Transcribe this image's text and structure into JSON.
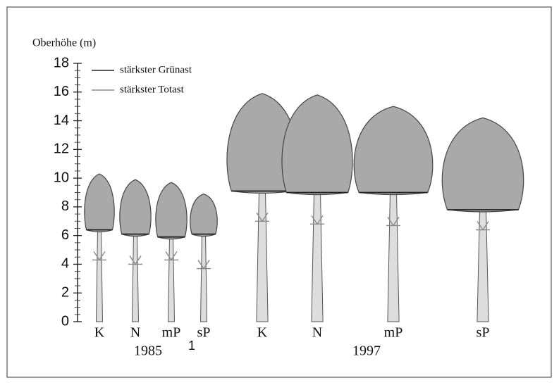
{
  "chart_data": {
    "type": "tree",
    "y_label": "Oberhöhe (m)",
    "categories": [
      "K",
      "N",
      "mP",
      "sP",
      "K",
      "N",
      "mP",
      "sP"
    ],
    "groups": [
      "1985",
      "1997"
    ],
    "annotation": "1",
    "values": [
      10.3,
      9.9,
      9.7,
      8.9,
      15.9,
      15.8,
      15.0,
      14.2
    ],
    "color": "#a9a9a9",
    "series": [
      {
        "name": "stärkster Grünast",
        "color": "#222222",
        "values": [
          6.4,
          6.1,
          5.9,
          6.1,
          9.1,
          9.0,
          9.0,
          7.8
        ]
      },
      {
        "name": "stärkster Totast",
        "color": "#8a8a8a",
        "values": [
          4.3,
          4.0,
          4.3,
          3.7,
          7.0,
          6.8,
          6.7,
          6.4
        ]
      }
    ],
    "ylim": [
      0,
      18
    ],
    "yticks": [
      0,
      2,
      4,
      6,
      8,
      10,
      12,
      14,
      16,
      18
    ]
  }
}
